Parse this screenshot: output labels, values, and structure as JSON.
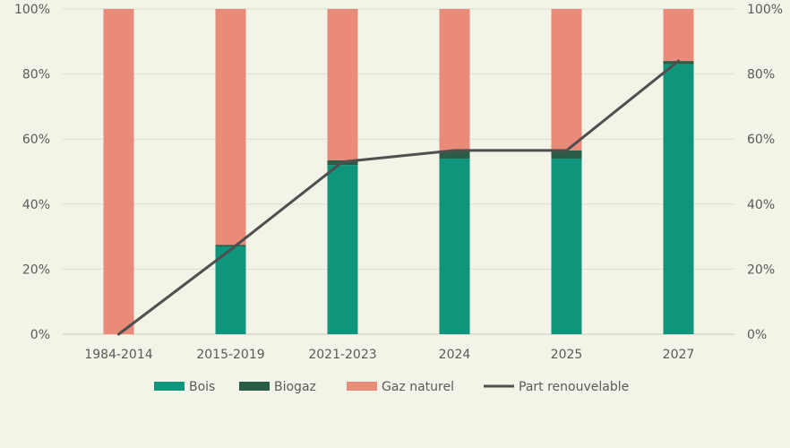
{
  "chart_data": {
    "type": "bar",
    "stacked": true,
    "categories": [
      "1984-2014",
      "2015-2019",
      "2021-2023",
      "2024",
      "2025",
      "2027"
    ],
    "series": [
      {
        "name": "Bois",
        "kind": "bar",
        "color": "#0e957b",
        "values": [
          0,
          27,
          52,
          54,
          54,
          83
        ]
      },
      {
        "name": "Biogaz",
        "kind": "bar",
        "color": "#2b5c46",
        "values": [
          0,
          0.5,
          1.5,
          2.5,
          2.5,
          1
        ]
      },
      {
        "name": "Gaz naturel",
        "kind": "bar",
        "color": "#ea8a78",
        "values": [
          100,
          72.5,
          46.5,
          43.5,
          43.5,
          16
        ]
      },
      {
        "name": "Part renouvelable",
        "kind": "line",
        "color": "#4f4f4f",
        "values": [
          0,
          26,
          53,
          56.5,
          56.5,
          84
        ]
      }
    ],
    "y_axis_left": {
      "min": 0,
      "max": 100,
      "ticks": [
        "0%",
        "20%",
        "40%",
        "60%",
        "80%",
        "100%"
      ]
    },
    "y_axis_right": {
      "min": 0,
      "max": 100,
      "ticks": [
        "0%",
        "20%",
        "40%",
        "60%",
        "80%",
        "100%"
      ]
    },
    "grid": true,
    "legend_position": "bottom",
    "title": "",
    "xlabel": "",
    "ylabel": ""
  }
}
